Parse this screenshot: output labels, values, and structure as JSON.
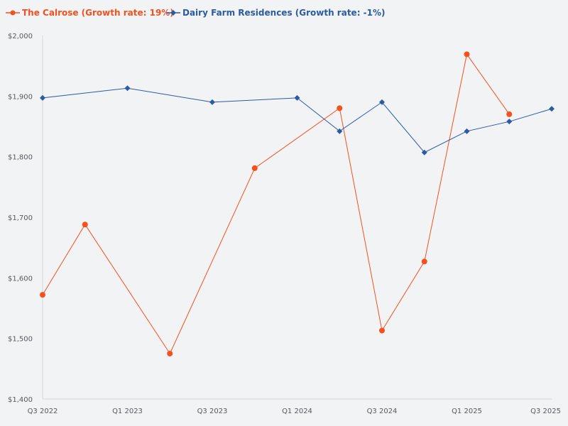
{
  "chart_data": {
    "type": "line",
    "title": "",
    "xlabel": "",
    "ylabel": "",
    "ylim": [
      1400,
      2000
    ],
    "y_ticks": [
      1400,
      1500,
      1600,
      1700,
      1800,
      1900,
      2000
    ],
    "y_tick_labels": [
      "$1,400",
      "$1,500",
      "$1,600",
      "$1,700",
      "$1,800",
      "$1,900",
      "$2,000"
    ],
    "x_tick_labels": [
      "Q3 2022",
      "Q1 2023",
      "Q3 2023",
      "Q1 2024",
      "Q3 2024",
      "Q1 2025",
      "Q3 2025"
    ],
    "x_tick_positions": [
      0,
      2,
      4,
      6,
      8,
      10,
      12
    ],
    "x_range": [
      0,
      12
    ],
    "legend_position": "top-left",
    "series": [
      {
        "name": "The Calrose (Growth rate: 19%)",
        "color": "#f4511e",
        "marker": "circle",
        "x": [
          0,
          1,
          3,
          5,
          7,
          8,
          9,
          10,
          11
        ],
        "values": [
          1572,
          1688,
          1475,
          1781,
          1880,
          1513,
          1627,
          1969,
          1870
        ]
      },
      {
        "name": "Dairy Farm Residences (Growth rate: -1%)",
        "color": "#2a5ba3",
        "marker": "diamond",
        "x": [
          0,
          2,
          4,
          6,
          7,
          8,
          9,
          10,
          11,
          12
        ],
        "values": [
          1897,
          1913,
          1890,
          1897,
          1842,
          1890,
          1807,
          1842,
          1858,
          1879
        ]
      }
    ]
  }
}
